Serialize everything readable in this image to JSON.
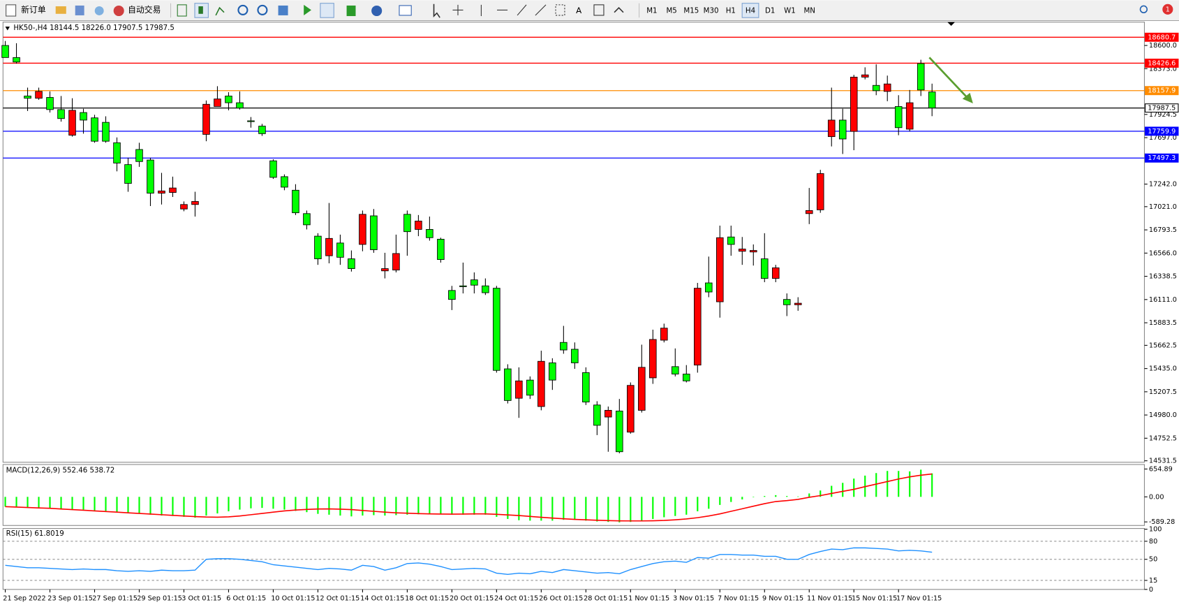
{
  "toolbar": {
    "new_order": "新订单",
    "auto_trading": "自动交易",
    "text_tool": "A",
    "timeframes": [
      "M1",
      "M5",
      "M15",
      "M30",
      "H1",
      "H4",
      "D1",
      "W1",
      "MN"
    ],
    "active_timeframe": "H4",
    "notifications": "1"
  },
  "chart_data": [
    {
      "type": "candlestick",
      "header": "HK50-,H4  18144.5 18226.0 17907.5 17987.5",
      "up_color": "#ff0000",
      "down_color": "#00ff00",
      "categories": [
        "21 Sep 2022",
        null,
        null,
        null,
        "23 Sep 01:15",
        null,
        null,
        null,
        "27 Sep 01:15",
        null,
        null,
        null,
        "29 Sep 01:15",
        null,
        null,
        null,
        "3 Oct 01:15",
        null,
        null,
        null,
        "6 Oct 01:15",
        null,
        null,
        null,
        "10 Oct 01:15",
        null,
        null,
        null,
        "12 Oct 01:15",
        null,
        null,
        null,
        "14 Oct 01:15",
        null,
        null,
        null,
        "18 Oct 01:15",
        null,
        null,
        null,
        "20 Oct 01:15",
        null,
        null,
        null,
        "24 Oct 01:15",
        null,
        null,
        null,
        "26 Oct 01:15",
        null,
        null,
        null,
        "28 Oct 01:15",
        null,
        null,
        null,
        "1 Nov 01:15",
        null,
        null,
        null,
        "3 Nov 01:15",
        null,
        null,
        null,
        "7 Nov 01:15",
        null,
        null,
        null,
        "9 Nov 01:15",
        null,
        null,
        null,
        "11 Nov 01:15",
        null,
        null,
        null,
        "15 Nov 01:15",
        null,
        null,
        null,
        "17 Nov 01:15",
        null,
        null,
        null
      ],
      "open": [
        18600,
        18482,
        18105,
        18083,
        18091,
        17972,
        17721,
        17943,
        17891,
        17847,
        17647,
        17433,
        17581,
        17478,
        17153,
        17160,
        16998,
        17042,
        17729,
        18002,
        18105,
        18039,
        17862,
        17810,
        17470,
        17315,
        17182,
        16953,
        16732,
        16540,
        16665,
        16510,
        16651,
        16931,
        16392,
        16400,
        16946,
        16798,
        16798,
        16702,
        16200,
        16245,
        16304,
        16245,
        16222,
        15432,
        15144,
        15322,
        15063,
        15491,
        15691,
        15624,
        15395,
        15078,
        14960,
        15019,
        14812,
        15026,
        15344,
        15713,
        15454,
        15381,
        15469,
        16274,
        16089,
        16724,
        16584,
        16577,
        16510,
        16318,
        16112,
        16060,
        16953,
        16990,
        17707,
        17869,
        17758,
        18290,
        18209,
        18150,
        18002,
        17780,
        18423,
        18144.5
      ],
      "high": [
        18644,
        18622,
        18187,
        18187,
        18150,
        18105,
        18083,
        17980,
        17921,
        17906,
        17699,
        17500,
        17647,
        17500,
        17352,
        17315,
        17072,
        17167,
        18061,
        18201,
        18142,
        18150,
        17899,
        17832,
        17485,
        17337,
        17241,
        16983,
        16761,
        17057,
        16747,
        16592,
        16983,
        16998,
        16569,
        16747,
        16983,
        16939,
        16924,
        16717,
        16245,
        16473,
        16377,
        16318,
        16245,
        15477,
        15447,
        15358,
        15610,
        15536,
        15853,
        15691,
        15447,
        15115,
        15063,
        15137,
        15299,
        15669,
        15816,
        15875,
        15632,
        15469,
        16274,
        16532,
        16835,
        16835,
        16724,
        16651,
        16761,
        16451,
        16171,
        16134,
        17204,
        17382,
        18187,
        17980,
        18312,
        18386,
        18415,
        18305,
        18113,
        18164,
        18460,
        18226
      ],
      "low": [
        18482,
        18423,
        17958,
        18068,
        17943,
        17854,
        17707,
        17736,
        17647,
        17647,
        17367,
        17167,
        17411,
        17027,
        17042,
        17116,
        16976,
        16924,
        17662,
        18002,
        17965,
        17972,
        17795,
        17714,
        17293,
        17182,
        16939,
        16798,
        16451,
        16466,
        16451,
        16385,
        16584,
        16569,
        16318,
        16377,
        16540,
        16732,
        16688,
        16473,
        16008,
        16171,
        16171,
        16156,
        15395,
        15093,
        14952,
        15137,
        15026,
        15226,
        15580,
        15432,
        15078,
        14783,
        14620,
        14605,
        14797,
        15004,
        15285,
        15691,
        15358,
        15299,
        15395,
        16134,
        15934,
        16540,
        16451,
        16444,
        16281,
        16281,
        15949,
        16001,
        16850,
        16961,
        17611,
        17537,
        17574,
        18268,
        18113,
        18054,
        17721,
        17758,
        18105,
        17907.5
      ],
      "close": [
        18482,
        18438,
        18083,
        18150,
        17972,
        17884,
        17965,
        17869,
        17662,
        17662,
        17448,
        17249,
        17463,
        17153,
        17175,
        17204,
        17042,
        17072,
        18024,
        18076,
        18039,
        17987,
        17854,
        17736,
        17308,
        17212,
        16961,
        16843,
        16510,
        16710,
        16525,
        16414,
        16946,
        16599,
        16414,
        16562,
        16776,
        16880,
        16717,
        16503,
        16112,
        16237,
        16252,
        16178,
        15417,
        15122,
        15314,
        15174,
        15506,
        15322,
        15617,
        15491,
        15107,
        14879,
        15026,
        14620,
        15270,
        15447,
        15720,
        15831,
        15381,
        15314,
        16222,
        16185,
        16717,
        16651,
        16606,
        16592,
        16318,
        16422,
        16060,
        16075,
        16983,
        17345,
        17869,
        17684,
        18290,
        18312,
        18157,
        18223,
        17795,
        18039,
        18164,
        17987.5
      ],
      "levels": [
        {
          "value": 18680.7,
          "color": "#ff0000"
        },
        {
          "value": 18426.6,
          "color": "#ff0000"
        },
        {
          "value": 18157.9,
          "color": "#ff8c00"
        },
        {
          "value": 17987.5,
          "color": "#000000"
        },
        {
          "value": 17759.9,
          "color": "#0000ff"
        },
        {
          "value": 17497.3,
          "color": "#0000ff"
        }
      ],
      "ylim": [
        14517,
        18829
      ],
      "yticks": [
        {
          "value": 18600,
          "label": "18600.0"
        },
        {
          "value": 18373,
          "label": "18373.0"
        },
        {
          "value": 17924.5,
          "label": "17924.5"
        },
        {
          "value": 17697,
          "label": "17697.0"
        },
        {
          "value": 17242,
          "label": "17242.0"
        },
        {
          "value": 17021,
          "label": "17021.0"
        },
        {
          "value": 16793.5,
          "label": "16793.5"
        },
        {
          "value": 16566,
          "label": "16566.0"
        },
        {
          "value": 16338.5,
          "label": "16338.5"
        },
        {
          "value": 16111,
          "label": "16111.0"
        },
        {
          "value": 15883.5,
          "label": "15883.5"
        },
        {
          "value": 15662.5,
          "label": "15662.5"
        },
        {
          "value": 15435,
          "label": "15435.0"
        },
        {
          "value": 15207.5,
          "label": "15207.5"
        },
        {
          "value": 14980,
          "label": "14980.0"
        },
        {
          "value": 14752.5,
          "label": "14752.5"
        },
        {
          "value": 14531.5,
          "label": "14531.5"
        }
      ]
    },
    {
      "type": "macd",
      "title": "MACD(12,26,9) 552.46 538.72",
      "series": [
        {
          "name": "MACD",
          "color": "#00ff00",
          "values": [
            -230,
            -240,
            -250,
            -260,
            -270,
            -280,
            -290,
            -300,
            -320,
            -330,
            -350,
            -380,
            -390,
            -420,
            -440,
            -450,
            -470,
            -490,
            -440,
            -390,
            -340,
            -300,
            -270,
            -260,
            -280,
            -300,
            -330,
            -360,
            -400,
            -420,
            -440,
            -460,
            -440,
            -430,
            -440,
            -430,
            -420,
            -410,
            -410,
            -410,
            -420,
            -420,
            -420,
            -420,
            -470,
            -520,
            -550,
            -560,
            -560,
            -560,
            -540,
            -540,
            -560,
            -580,
            -590,
            -600,
            -590,
            -560,
            -520,
            -480,
            -450,
            -420,
            -340,
            -280,
            -190,
            -120,
            -60,
            -10,
            20,
            40,
            20,
            10,
            80,
            150,
            260,
            330,
            430,
            500,
            560,
            610,
            610,
            600,
            640,
            552.46
          ]
        },
        {
          "name": "Signal",
          "color": "#ff0000",
          "values": [
            -230,
            -240,
            -250,
            -260,
            -270,
            -285,
            -300,
            -315,
            -330,
            -345,
            -360,
            -375,
            -390,
            -405,
            -420,
            -435,
            -450,
            -465,
            -475,
            -478,
            -470,
            -450,
            -420,
            -390,
            -360,
            -330,
            -310,
            -295,
            -285,
            -283,
            -290,
            -300,
            -320,
            -340,
            -360,
            -375,
            -385,
            -395,
            -400,
            -405,
            -407,
            -405,
            -400,
            -400,
            -410,
            -425,
            -440,
            -460,
            -480,
            -500,
            -515,
            -530,
            -540,
            -550,
            -558,
            -565,
            -566,
            -566,
            -562,
            -555,
            -540,
            -520,
            -490,
            -450,
            -400,
            -340,
            -280,
            -220,
            -160,
            -110,
            -88,
            -60,
            -10,
            30,
            80,
            130,
            177,
            240,
            300,
            360,
            420,
            470,
            510,
            538.72
          ]
        }
      ],
      "ylim": [
        -673,
        761
      ],
      "yticks": [
        654.89,
        {
          "value": 0,
          "label": "0.00"
        },
        -589.28
      ]
    },
    {
      "type": "rsi",
      "title": "RSI(15) 61.8019",
      "color": "#1e90ff",
      "values": [
        40,
        38,
        36,
        36,
        35,
        34,
        33,
        34,
        33,
        33,
        31,
        30,
        31,
        30,
        32,
        31,
        31,
        32,
        50,
        51,
        51,
        50,
        48,
        46,
        41,
        39,
        37,
        35,
        33,
        35,
        34,
        32,
        40,
        38,
        32,
        36,
        43,
        44,
        42,
        38,
        33,
        34,
        35,
        34,
        27,
        25,
        27,
        26,
        30,
        28,
        33,
        31,
        29,
        27,
        28,
        26,
        33,
        38,
        43,
        46,
        47,
        45,
        53,
        52,
        58,
        58,
        57,
        57,
        55,
        55,
        50,
        50,
        58,
        63,
        67,
        66,
        69,
        69,
        68,
        67,
        64,
        65,
        64,
        61.8019
      ],
      "levels": [
        80,
        50,
        15
      ],
      "ylim": [
        0,
        100
      ],
      "yticks": [
        100,
        80,
        50,
        15,
        0
      ]
    }
  ]
}
